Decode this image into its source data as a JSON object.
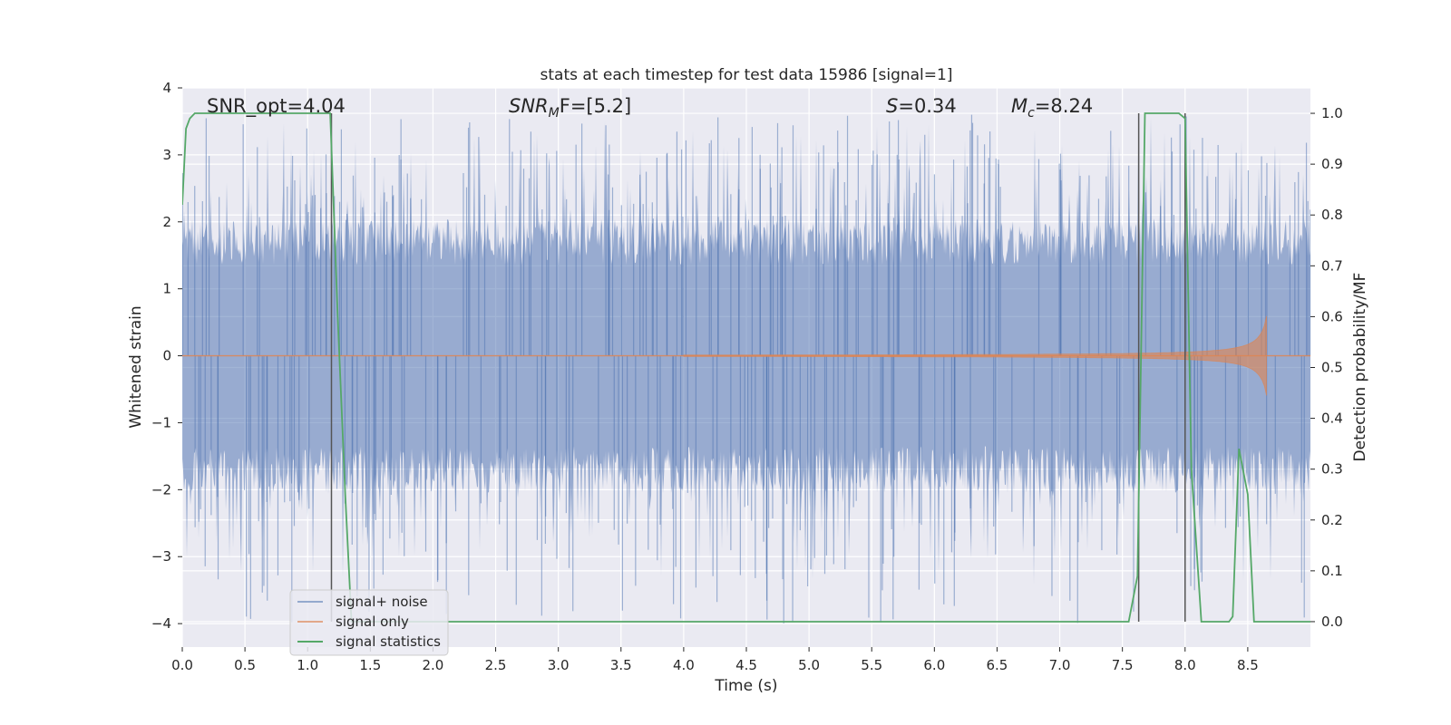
{
  "chart_data": {
    "type": "line",
    "title": "stats at each timestep for test data 15986 [signal=1]",
    "xlabel": "Time (s)",
    "ylabel": "Whitened strain",
    "ylabel_right": "Detection probability/MF",
    "xlim": [
      0.0,
      9.0
    ],
    "ylim": [
      -4.35,
      4.0
    ],
    "ylim_right": [
      -0.05,
      1.05
    ],
    "xticks": [
      "0.0",
      "0.5",
      "1.0",
      "1.5",
      "2.0",
      "2.5",
      "3.0",
      "3.5",
      "4.0",
      "4.5",
      "5.0",
      "5.5",
      "6.0",
      "6.5",
      "7.0",
      "7.5",
      "8.0",
      "8.5"
    ],
    "yticks": [
      "4",
      "3",
      "2",
      "1",
      "0",
      "−1",
      "−2",
      "−3",
      "−4"
    ],
    "yticks_right": [
      "1.0",
      "0.9",
      "0.8",
      "0.7",
      "0.6",
      "0.5",
      "0.4",
      "0.3",
      "0.2",
      "0.1",
      "0.0"
    ],
    "grid": true,
    "legend_position": "bottom-left",
    "colors": {
      "noise": "#4c72b0",
      "signal": "#dd8452",
      "stats": "#55a868",
      "vline": "#555555",
      "axes_bg": "#eaeaf2",
      "grid": "#ffffff"
    },
    "annotations": {
      "snr_opt": "SNR_opt=4.04",
      "snr_mf": {
        "base": "SNR",
        "sub": "M",
        "rest": "F=[5.2]"
      },
      "s": {
        "italic": "S",
        "rest": "=0.34"
      },
      "mc": {
        "base": "M",
        "sub": "c",
        "rest": "=8.24"
      }
    },
    "series": [
      {
        "name": "signal+ noise",
        "kind": "noise",
        "sigma": 1.0,
        "x_range": [
          0.0,
          9.0
        ],
        "y_extent": [
          -4.0,
          3.6
        ]
      },
      {
        "name": "signal only",
        "kind": "chirp",
        "x_start": 4.0,
        "x_merger": 8.65,
        "peak_amplitude": 0.65
      },
      {
        "name": "signal statistics",
        "kind": "probability",
        "x": [
          0.0,
          0.03,
          0.06,
          0.1,
          1.18,
          1.24,
          1.3,
          1.35,
          7.55,
          7.62,
          7.68,
          7.95,
          8.0,
          8.05,
          8.13,
          8.25,
          8.35,
          8.38,
          8.43,
          8.5,
          8.55,
          8.6,
          9.0
        ],
        "y": [
          0.82,
          0.97,
          0.99,
          1.0,
          1.0,
          0.6,
          0.25,
          0.0,
          0.0,
          0.09,
          1.0,
          1.0,
          0.99,
          0.3,
          0.0,
          0.0,
          0.0,
          0.01,
          0.34,
          0.25,
          0.0,
          0.0,
          0.0
        ]
      }
    ],
    "vlines": [
      1.19,
      7.63,
      8.0
    ],
    "legend": [
      "signal+ noise",
      "signal only",
      "signal statistics"
    ]
  }
}
